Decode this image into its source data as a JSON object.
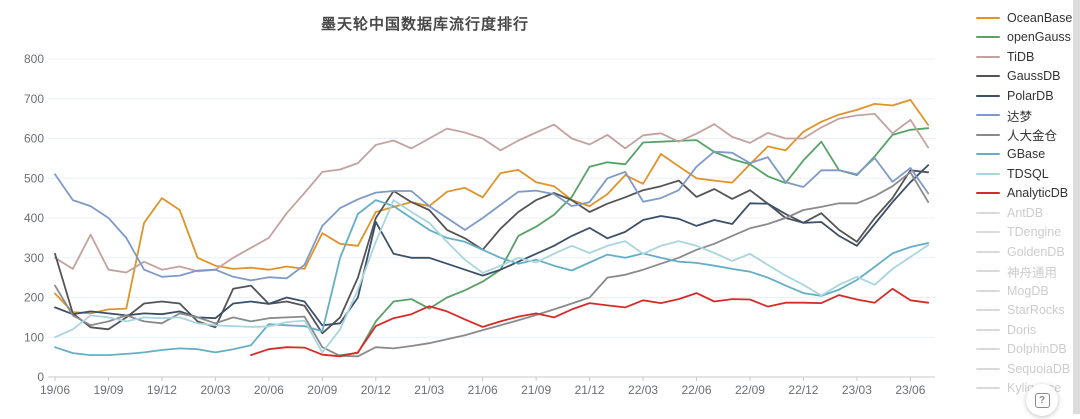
{
  "title": "墨天轮中国数据库流行度排行",
  "help_icon": "?",
  "chart_data": {
    "type": "line",
    "title": "墨天轮中国数据库流行度排行",
    "xlabel": "",
    "ylabel": "",
    "legend_position": "right",
    "grid": true,
    "y_axis": {
      "min": 0,
      "max": 800,
      "step": 100,
      "ticks": [
        0,
        100,
        200,
        300,
        400,
        500,
        600,
        700,
        800
      ]
    },
    "x_tick_labels": [
      "19/06",
      "19/09",
      "19/12",
      "20/03",
      "20/06",
      "20/09",
      "20/12",
      "21/03",
      "21/06",
      "21/09",
      "21/12",
      "22/03",
      "22/06",
      "22/09",
      "22/12",
      "23/03",
      "23/06"
    ],
    "x_labels": [
      "19/06",
      "19/07",
      "19/08",
      "19/09",
      "19/10",
      "19/11",
      "19/12",
      "20/01",
      "20/02",
      "20/03",
      "20/04",
      "20/05",
      "20/06",
      "20/07",
      "20/08",
      "20/09",
      "20/10",
      "20/11",
      "20/12",
      "21/01",
      "21/02",
      "21/03",
      "21/04",
      "21/05",
      "21/06",
      "21/07",
      "21/08",
      "21/09",
      "21/10",
      "21/11",
      "21/12",
      "22/01",
      "22/02",
      "22/03",
      "22/04",
      "22/05",
      "22/06",
      "22/07",
      "22/08",
      "22/09",
      "22/10",
      "22/11",
      "22/12",
      "23/01",
      "23/02",
      "23/03",
      "23/04",
      "23/05",
      "23/06",
      "23/07"
    ],
    "series": [
      {
        "name": "OceanBase",
        "color": "#E09329",
        "active": true,
        "values": [
          210,
          163,
          160,
          170,
          172,
          388,
          450,
          420,
          300,
          280,
          272,
          275,
          270,
          278,
          272,
          362,
          335,
          330,
          415,
          428,
          440,
          430,
          466,
          476,
          452,
          513,
          521,
          490,
          480,
          445,
          430,
          460,
          508,
          486,
          561,
          530,
          500,
          494,
          489,
          535,
          580,
          570,
          617,
          642,
          660,
          672,
          687,
          683,
          697,
          634
        ]
      },
      {
        "name": "openGauss",
        "color": "#57A266",
        "active": true,
        "values": [
          null,
          null,
          null,
          null,
          null,
          null,
          null,
          null,
          null,
          null,
          null,
          null,
          null,
          null,
          null,
          null,
          55,
          60,
          140,
          190,
          196,
          172,
          200,
          218,
          240,
          270,
          355,
          378,
          408,
          453,
          529,
          540,
          535,
          590,
          592,
          594,
          596,
          566,
          548,
          535,
          505,
          488,
          545,
          592,
          520,
          508,
          555,
          609,
          622,
          626
        ]
      },
      {
        "name": "TiDB",
        "color": "#C4A29E",
        "active": true,
        "values": [
          300,
          272,
          358,
          270,
          263,
          290,
          270,
          278,
          266,
          270,
          300,
          325,
          350,
          412,
          463,
          516,
          522,
          538,
          584,
          595,
          575,
          600,
          625,
          615,
          600,
          570,
          595,
          615,
          635,
          600,
          585,
          609,
          575,
          608,
          613,
          592,
          612,
          636,
          604,
          589,
          614,
          600,
          600,
          628,
          650,
          658,
          662,
          613,
          647,
          577
        ]
      },
      {
        "name": "GaussDB",
        "color": "#545454",
        "active": true,
        "values": [
          310,
          160,
          125,
          120,
          150,
          185,
          190,
          185,
          140,
          125,
          222,
          230,
          184,
          190,
          179,
          110,
          150,
          250,
          400,
          468,
          440,
          420,
          370,
          349,
          320,
          373,
          415,
          445,
          463,
          445,
          415,
          436,
          452,
          470,
          480,
          494,
          453,
          473,
          448,
          470,
          436,
          400,
          388,
          412,
          370,
          340,
          400,
          450,
          520,
          515
        ]
      },
      {
        "name": "PolarDB",
        "color": "#3C506A",
        "active": true,
        "values": [
          175,
          158,
          165,
          160,
          155,
          160,
          158,
          165,
          150,
          148,
          185,
          190,
          184,
          200,
          190,
          130,
          135,
          200,
          390,
          310,
          300,
          300,
          285,
          270,
          255,
          270,
          290,
          310,
          330,
          355,
          375,
          349,
          365,
          395,
          405,
          398,
          380,
          395,
          385,
          437,
          436,
          410,
          388,
          390,
          355,
          330,
          385,
          440,
          490,
          533
        ]
      },
      {
        "name": "达梦",
        "color": "#7D9AC8",
        "active": true,
        "values": [
          510,
          445,
          430,
          400,
          350,
          270,
          252,
          255,
          268,
          270,
          252,
          243,
          251,
          248,
          282,
          380,
          425,
          447,
          464,
          468,
          468,
          430,
          400,
          370,
          400,
          433,
          466,
          469,
          460,
          430,
          440,
          500,
          516,
          441,
          450,
          470,
          529,
          567,
          564,
          538,
          553,
          490,
          478,
          520,
          520,
          510,
          551,
          491,
          526,
          462
        ]
      },
      {
        "name": "人大金仓",
        "color": "#8A8A8A",
        "active": true,
        "values": [
          230,
          155,
          130,
          140,
          155,
          140,
          135,
          160,
          150,
          135,
          150,
          140,
          148,
          150,
          152,
          75,
          53,
          52,
          75,
          72,
          78,
          85,
          95,
          105,
          118,
          130,
          143,
          156,
          170,
          185,
          200,
          250,
          257,
          270,
          285,
          300,
          320,
          335,
          355,
          374,
          385,
          400,
          420,
          428,
          437,
          437,
          455,
          480,
          515,
          440
        ]
      },
      {
        "name": "GBase",
        "color": "#64AEC6",
        "active": true,
        "values": [
          75,
          60,
          55,
          55,
          58,
          62,
          68,
          72,
          70,
          62,
          70,
          80,
          133,
          130,
          128,
          115,
          300,
          410,
          445,
          430,
          400,
          370,
          350,
          340,
          320,
          300,
          285,
          295,
          280,
          268,
          288,
          308,
          300,
          311,
          300,
          290,
          287,
          280,
          272,
          265,
          250,
          230,
          211,
          204,
          220,
          244,
          277,
          311,
          327,
          337
        ]
      },
      {
        "name": "TDSQL",
        "color": "#A9D5DF",
        "active": true,
        "values": [
          100,
          120,
          155,
          150,
          140,
          150,
          148,
          150,
          135,
          130,
          128,
          126,
          127,
          138,
          142,
          62,
          120,
          220,
          340,
          445,
          415,
          388,
          340,
          295,
          262,
          280,
          300,
          288,
          310,
          330,
          312,
          330,
          342,
          310,
          330,
          342,
          330,
          312,
          292,
          310,
          282,
          255,
          232,
          205,
          232,
          252,
          232,
          272,
          302,
          332
        ]
      },
      {
        "name": "AnalyticDB",
        "color": "#D62C28",
        "active": true,
        "values": [
          null,
          null,
          null,
          null,
          null,
          null,
          null,
          null,
          null,
          null,
          null,
          55,
          70,
          75,
          74,
          56,
          52,
          62,
          128,
          148,
          158,
          178,
          165,
          145,
          126,
          140,
          152,
          160,
          150,
          170,
          186,
          180,
          175,
          193,
          186,
          196,
          211,
          190,
          196,
          195,
          177,
          187,
          187,
          186,
          206,
          195,
          187,
          222,
          193,
          187
        ]
      },
      {
        "name": "AntDB",
        "color": "#DADADA",
        "active": false,
        "values": []
      },
      {
        "name": "TDengine",
        "color": "#DADADA",
        "active": false,
        "values": []
      },
      {
        "name": "GoldenDB",
        "color": "#DADADA",
        "active": false,
        "values": []
      },
      {
        "name": "神舟通用",
        "color": "#DADADA",
        "active": false,
        "values": []
      },
      {
        "name": "MogDB",
        "color": "#DADADA",
        "active": false,
        "values": []
      },
      {
        "name": "StarRocks",
        "color": "#DADADA",
        "active": false,
        "values": []
      },
      {
        "name": "Doris",
        "color": "#DADADA",
        "active": false,
        "values": []
      },
      {
        "name": "DolphinDB",
        "color": "#DADADA",
        "active": false,
        "values": []
      },
      {
        "name": "SequoiaDB",
        "color": "#DADADA",
        "active": false,
        "values": []
      },
      {
        "name": "Kyligence",
        "color": "#DADADA",
        "active": false,
        "values": []
      }
    ]
  },
  "colors": {
    "grid": "#ebeff7",
    "axis_line": "#c9c9c9",
    "axis_label": "#6b6f76",
    "title": "#484848",
    "legend_inactive": "#cccccc"
  }
}
